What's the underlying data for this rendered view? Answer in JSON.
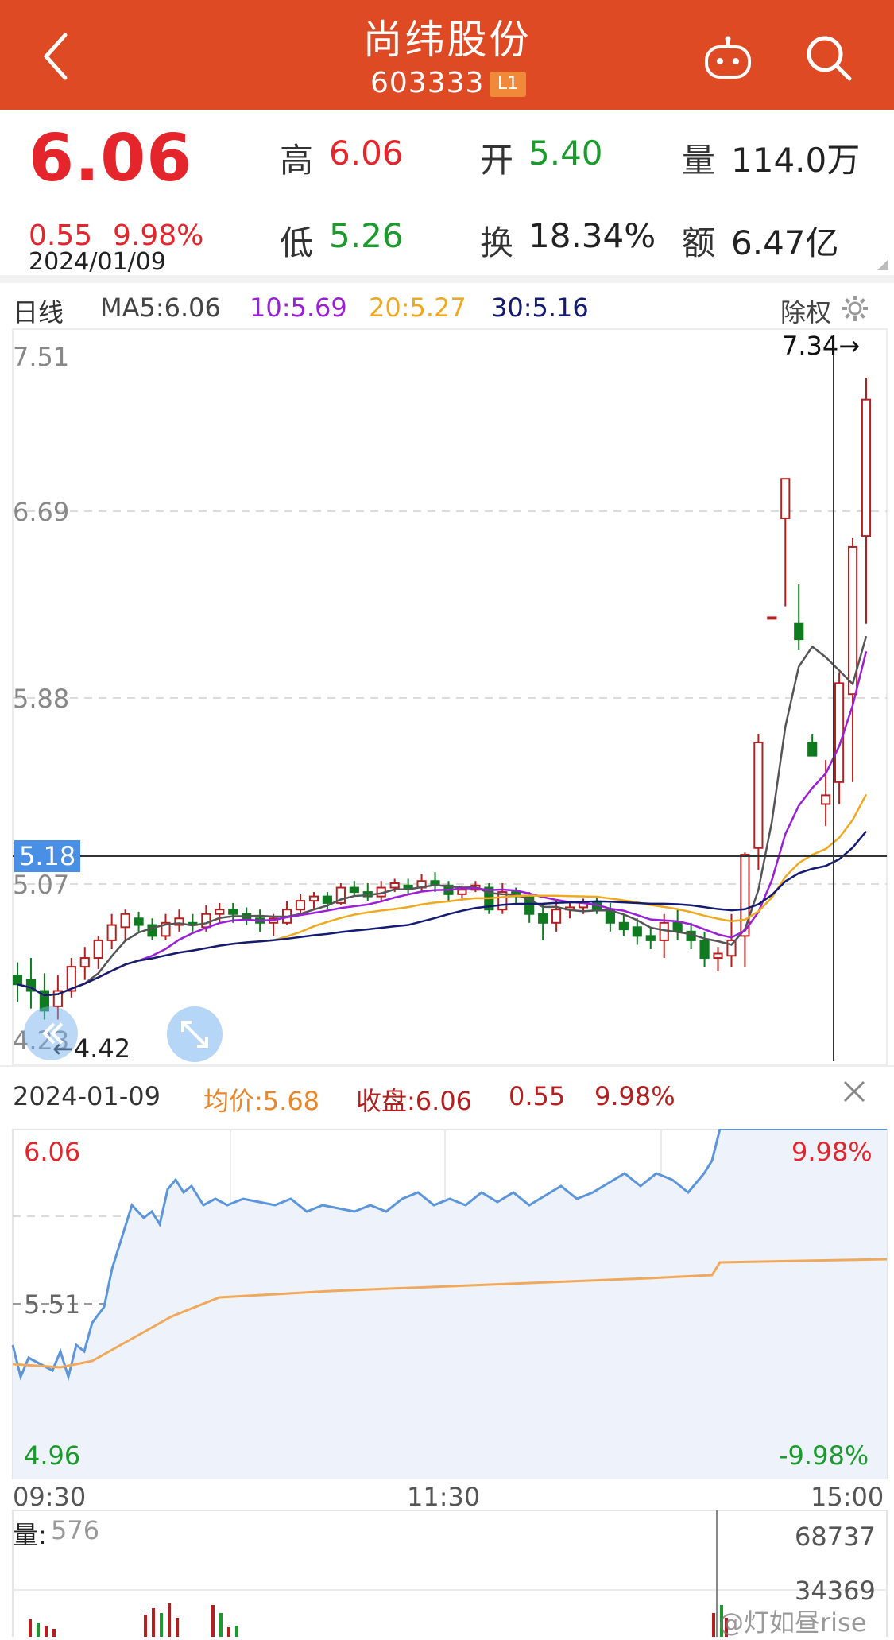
{
  "header": {
    "title": "尚纬股份",
    "code": "603333",
    "badge": "L1",
    "back_icon": "back-arrow-icon",
    "robot_icon": "robot-icon",
    "search_icon": "search-icon"
  },
  "quote": {
    "price": "6.06",
    "change": "0.55",
    "change_pct": "9.98%",
    "date": "2024/01/09",
    "high_label": "高",
    "high": "6.06",
    "open_label": "开",
    "open": "5.40",
    "volume_label": "量",
    "volume": "114.0万",
    "low_label": "低",
    "low": "5.26",
    "turnover_label": "换",
    "turnover": "18.34%",
    "amount_label": "额",
    "amount": "6.47亿"
  },
  "kline_info": {
    "period": "日线",
    "ma5": "MA5:6.06",
    "ma10": "10:5.69",
    "ma20": "20:5.27",
    "ma30": "30:5.16",
    "adjust": "除权"
  },
  "kline": {
    "y_labels": [
      "7.51",
      "6.69",
      "5.88",
      "5.07",
      "4.23"
    ],
    "crosshair_price": "5.18",
    "max_label": "7.34→",
    "min_label": "←4.42",
    "colors": {
      "ma5": "#555555",
      "ma10": "#9b1fd6",
      "ma20": "#f0a91f",
      "ma30": "#141b72",
      "up": "#b42020",
      "down": "#0f7a1f"
    }
  },
  "intraday_info": {
    "date": "2024-01-09",
    "avg": "均价:5.68",
    "close": "收盘:6.06",
    "change": "0.55",
    "pct": "9.98%"
  },
  "intraday": {
    "top_price": "6.06",
    "top_pct": "9.98%",
    "mid_price": "5.51",
    "bottom_price": "4.96",
    "bottom_pct": "-9.98%",
    "time_start": "09:30",
    "time_mid": "11:30",
    "time_end": "15:00"
  },
  "volume": {
    "label": "量:",
    "value": "576",
    "max": "68737",
    "mid": "34369"
  },
  "watermark": "@灯如昼rise",
  "chart_data": [
    {
      "type": "candlestick",
      "title": "",
      "ylim": [
        4.23,
        7.51
      ],
      "series": [
        {
          "name": "MA5:6.06",
          "values": []
        },
        {
          "name": "10:5.69",
          "values": []
        },
        {
          "name": "20:5.27",
          "values": []
        },
        {
          "name": "30:5.16",
          "values": []
        }
      ],
      "candles": [
        [
          4.62,
          4.58,
          4.68,
          4.5
        ],
        [
          4.6,
          4.55,
          4.7,
          4.47
        ],
        [
          4.55,
          4.46,
          4.63,
          4.42
        ],
        [
          4.48,
          4.55,
          4.62,
          4.42
        ],
        [
          4.55,
          4.66,
          4.7,
          4.52
        ],
        [
          4.66,
          4.7,
          4.75,
          4.6
        ],
        [
          4.7,
          4.78,
          4.8,
          4.65
        ],
        [
          4.78,
          4.85,
          4.9,
          4.74
        ],
        [
          4.84,
          4.9,
          4.92,
          4.78
        ],
        [
          4.88,
          4.85,
          4.91,
          4.82
        ],
        [
          4.85,
          4.8,
          4.88,
          4.78
        ],
        [
          4.8,
          4.86,
          4.9,
          4.78
        ],
        [
          4.85,
          4.88,
          4.92,
          4.82
        ],
        [
          4.86,
          4.85,
          4.9,
          4.82
        ],
        [
          4.84,
          4.9,
          4.94,
          4.82
        ],
        [
          4.9,
          4.92,
          4.95,
          4.86
        ],
        [
          4.92,
          4.9,
          4.95,
          4.86
        ],
        [
          4.9,
          4.88,
          4.93,
          4.85
        ],
        [
          4.88,
          4.86,
          4.92,
          4.82
        ],
        [
          4.86,
          4.88,
          4.9,
          4.8
        ],
        [
          4.86,
          4.92,
          4.96,
          4.85
        ],
        [
          4.92,
          4.96,
          4.99,
          4.9
        ],
        [
          4.96,
          4.98,
          5.0,
          4.92
        ],
        [
          4.98,
          4.95,
          5.0,
          4.92
        ],
        [
          4.95,
          5.02,
          5.04,
          4.94
        ],
        [
          5.02,
          5.0,
          5.05,
          4.98
        ],
        [
          5.0,
          4.98,
          5.04,
          4.96
        ],
        [
          4.98,
          5.02,
          5.05,
          4.96
        ],
        [
          5.02,
          5.04,
          5.06,
          5.0
        ],
        [
          5.03,
          5.02,
          5.06,
          4.99
        ],
        [
          5.02,
          5.05,
          5.08,
          5.0
        ],
        [
          5.05,
          5.03,
          5.09,
          5.0
        ],
        [
          5.03,
          4.99,
          5.05,
          4.96
        ],
        [
          4.99,
          5.01,
          5.03,
          4.97
        ],
        [
          5.01,
          5.03,
          5.05,
          5.0
        ],
        [
          5.02,
          4.92,
          5.04,
          4.9
        ],
        [
          4.92,
          5.0,
          5.04,
          4.9
        ],
        [
          5.0,
          4.98,
          5.02,
          4.95
        ],
        [
          4.98,
          4.9,
          5.0,
          4.86
        ],
        [
          4.9,
          4.86,
          4.95,
          4.78
        ],
        [
          4.86,
          4.92,
          4.96,
          4.82
        ],
        [
          4.92,
          4.93,
          4.95,
          4.88
        ],
        [
          4.93,
          4.95,
          4.97,
          4.9
        ],
        [
          4.95,
          4.92,
          4.98,
          4.9
        ],
        [
          4.92,
          4.86,
          4.95,
          4.82
        ],
        [
          4.86,
          4.83,
          4.9,
          4.8
        ],
        [
          4.84,
          4.8,
          4.88,
          4.76
        ],
        [
          4.8,
          4.78,
          4.84,
          4.74
        ],
        [
          4.78,
          4.86,
          4.9,
          4.7
        ],
        [
          4.86,
          4.82,
          4.92,
          4.78
        ],
        [
          4.82,
          4.78,
          4.86,
          4.74
        ],
        [
          4.78,
          4.7,
          4.82,
          4.66
        ],
        [
          4.7,
          4.72,
          4.75,
          4.64
        ],
        [
          4.71,
          4.78,
          4.9,
          4.66
        ],
        [
          4.8,
          5.17,
          5.18,
          4.66
        ],
        [
          5.2,
          5.68,
          5.72,
          5.1
        ],
        [
          6.25,
          6.25,
          6.25,
          6.25
        ],
        [
          6.7,
          6.88,
          6.88,
          6.3
        ],
        [
          6.22,
          6.15,
          6.4,
          6.1
        ],
        [
          5.68,
          5.62,
          5.72,
          5.62
        ],
        [
          5.4,
          5.44,
          5.6,
          5.3
        ],
        [
          5.5,
          5.95,
          6.0,
          5.4
        ],
        [
          5.9,
          6.57,
          6.61,
          5.5
        ],
        [
          6.62,
          7.24,
          7.34,
          6.22
        ]
      ]
    },
    {
      "type": "line",
      "title": "",
      "x_range": [
        "09:30",
        "15:00"
      ],
      "ylim": [
        4.96,
        6.06
      ],
      "series": [
        {
          "name": "收盘:6.06",
          "values": []
        },
        {
          "name": "均价:5.68",
          "values": []
        }
      ]
    }
  ]
}
